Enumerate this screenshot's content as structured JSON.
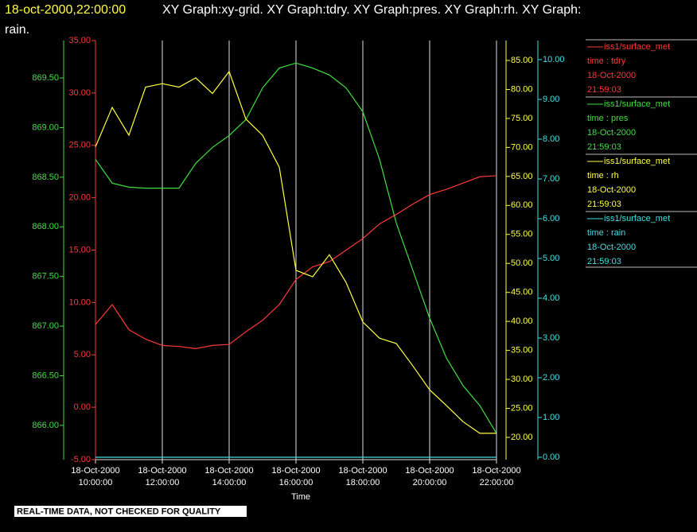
{
  "chart_data": {
    "type": "line",
    "title": "18-oct-2000,22:00:00",
    "subtitle": "XY Graph:xy-grid.  XY Graph:tdry.  XY Graph:pres.  XY Graph:rh.  XY Graph:",
    "subtitle_cont": "rain.",
    "xlabel": "Time",
    "footer": "REAL-TIME DATA, NOT CHECKED FOR QUALITY",
    "grid": true,
    "xlim": [
      10,
      22
    ],
    "xticks": [
      {
        "value": 10,
        "label": "18-Oct-2000 10:00:00"
      },
      {
        "value": 12,
        "label": "18-Oct-2000 12:00:00"
      },
      {
        "value": 14,
        "label": "18-Oct-2000 14:00:00"
      },
      {
        "value": 16,
        "label": "18-Oct-2000 16:00:00"
      },
      {
        "value": 18,
        "label": "18-Oct-2000 18:00:00"
      },
      {
        "value": 20,
        "label": "18-Oct-2000 20:00:00"
      },
      {
        "value": 22,
        "label": "18-Oct-2000 22:00:00"
      }
    ],
    "x": [
      10,
      10.5,
      11,
      11.5,
      12,
      12.5,
      13,
      13.5,
      14,
      14.5,
      15,
      15.5,
      16,
      16.5,
      17,
      17.5,
      18,
      18.5,
      19,
      19.5,
      20,
      20.5,
      21,
      21.5,
      22
    ],
    "series": [
      {
        "name": "iss1/surface_met",
        "variable": "time : tdry",
        "date": "18-Oct-2000",
        "clock": "21:59:03",
        "color": "#ff3838",
        "ylim": [
          -5,
          35
        ],
        "yticks": [
          {
            "value": -5,
            "label": "-5.00"
          },
          {
            "value": 0,
            "label": "0.00"
          },
          {
            "value": 5,
            "label": "5.00"
          },
          {
            "value": 10,
            "label": "10.00"
          },
          {
            "value": 15,
            "label": "15.00"
          },
          {
            "value": 20,
            "label": "20.00"
          },
          {
            "value": 25,
            "label": "25.00"
          },
          {
            "value": 30,
            "label": "30.00"
          },
          {
            "value": 35,
            "label": "35.00"
          }
        ],
        "values": [
          7.9,
          9.8,
          7.4,
          6.5,
          5.9,
          5.8,
          5.6,
          5.9,
          6.0,
          7.2,
          8.3,
          9.8,
          12.2,
          13.4,
          13.9,
          15.0,
          16.1,
          17.5,
          18.4,
          19.4,
          20.3,
          20.8,
          21.4,
          22.0,
          22.1
        ]
      },
      {
        "name": "iss1/surface_met",
        "variable": "time : pres",
        "date": "18-Oct-2000",
        "clock": "21:59:03",
        "color": "#40e040",
        "ylim": [
          865.655,
          869.877
        ],
        "yticks": [
          {
            "value": 866,
            "label": "866.00"
          },
          {
            "value": 866.5,
            "label": "866.50"
          },
          {
            "value": 867,
            "label": "867.00"
          },
          {
            "value": 867.5,
            "label": "867.50"
          },
          {
            "value": 868,
            "label": "868.00"
          },
          {
            "value": 868.5,
            "label": "868.50"
          },
          {
            "value": 869,
            "label": "869.00"
          },
          {
            "value": 869.5,
            "label": "869.50"
          }
        ],
        "values": [
          868.68,
          868.44,
          868.4,
          868.39,
          868.39,
          868.39,
          868.64,
          868.8,
          868.92,
          869.08,
          869.4,
          869.6,
          869.65,
          869.6,
          869.53,
          869.4,
          869.16,
          868.68,
          868.04,
          867.56,
          867.08,
          866.68,
          866.4,
          866.2,
          865.92
        ]
      },
      {
        "name": "iss1/surface_met",
        "variable": "time : rh",
        "date": "18-Oct-2000",
        "clock": "21:59:03",
        "color": "#ffff40",
        "ylim": [
          16.16,
          88.43
        ],
        "yticks": [
          {
            "value": 20,
            "label": "20.00"
          },
          {
            "value": 25,
            "label": "25.00"
          },
          {
            "value": 30,
            "label": "30.00"
          },
          {
            "value": 35,
            "label": "35.00"
          },
          {
            "value": 40,
            "label": "40.00"
          },
          {
            "value": 45,
            "label": "45.00"
          },
          {
            "value": 50,
            "label": "50.00"
          },
          {
            "value": 55,
            "label": "55.00"
          },
          {
            "value": 60,
            "label": "60.00"
          },
          {
            "value": 65,
            "label": "65.00"
          },
          {
            "value": 70,
            "label": "70.00"
          },
          {
            "value": 75,
            "label": "75.00"
          },
          {
            "value": 80,
            "label": "80.00"
          },
          {
            "value": 85,
            "label": "85.00"
          }
        ],
        "values": [
          70.1,
          76.9,
          72.1,
          80.4,
          81.0,
          80.4,
          82.0,
          79.3,
          83.1,
          74.9,
          72.1,
          66.6,
          48.8,
          47.7,
          51.5,
          46.7,
          39.9,
          37.1,
          36.2,
          32.3,
          28.2,
          25.5,
          22.7,
          20.7,
          20.7
        ]
      },
      {
        "name": "iss1/surface_met",
        "variable": "time : rain",
        "date": "18-Oct-2000",
        "clock": "21:59:03",
        "color": "#40e0e0",
        "ylim": [
          -0.06,
          10.48
        ],
        "yticks": [
          {
            "value": 0,
            "label": "0.00"
          },
          {
            "value": 1,
            "label": "1.00"
          },
          {
            "value": 2,
            "label": "2.00"
          },
          {
            "value": 3,
            "label": "3.00"
          },
          {
            "value": 4,
            "label": "4.00"
          },
          {
            "value": 5,
            "label": "5.00"
          },
          {
            "value": 6,
            "label": "6.00"
          },
          {
            "value": 7,
            "label": "7.00"
          },
          {
            "value": 8,
            "label": "8.00"
          },
          {
            "value": 9,
            "label": "9.00"
          },
          {
            "value": 10,
            "label": "10.00"
          }
        ],
        "values": [
          0,
          0,
          0,
          0,
          0,
          0,
          0,
          0,
          0,
          0,
          0,
          0,
          0,
          0,
          0,
          0,
          0,
          0,
          0,
          0,
          0,
          0,
          0,
          0,
          0
        ]
      }
    ]
  }
}
